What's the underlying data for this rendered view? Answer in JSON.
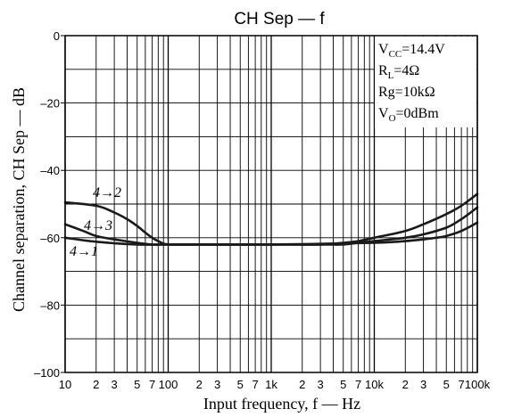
{
  "chart_data": {
    "type": "line",
    "title": "CH Sep — f",
    "xlabel": "Input frequency, f — Hz",
    "ylabel": "Channel separation, CH Sep — dB",
    "xscale": "log",
    "xlim": [
      10,
      100000
    ],
    "ylim": [
      -100,
      0
    ],
    "grid": true,
    "x_ticks": [
      {
        "v": 10,
        "label": "10",
        "major": true
      },
      {
        "v": 20,
        "label": "2"
      },
      {
        "v": 30,
        "label": "3"
      },
      {
        "v": 40,
        "label": ""
      },
      {
        "v": 50,
        "label": "5"
      },
      {
        "v": 60,
        "label": ""
      },
      {
        "v": 70,
        "label": "7"
      },
      {
        "v": 80,
        "label": ""
      },
      {
        "v": 90,
        "label": ""
      },
      {
        "v": 100,
        "label": "100",
        "major": true
      },
      {
        "v": 200,
        "label": "2"
      },
      {
        "v": 300,
        "label": "3"
      },
      {
        "v": 400,
        "label": ""
      },
      {
        "v": 500,
        "label": "5"
      },
      {
        "v": 600,
        "label": ""
      },
      {
        "v": 700,
        "label": "7"
      },
      {
        "v": 800,
        "label": ""
      },
      {
        "v": 900,
        "label": ""
      },
      {
        "v": 1000,
        "label": "1k",
        "major": true
      },
      {
        "v": 2000,
        "label": "2"
      },
      {
        "v": 3000,
        "label": "3"
      },
      {
        "v": 4000,
        "label": ""
      },
      {
        "v": 5000,
        "label": "5"
      },
      {
        "v": 6000,
        "label": ""
      },
      {
        "v": 7000,
        "label": "7"
      },
      {
        "v": 8000,
        "label": ""
      },
      {
        "v": 9000,
        "label": ""
      },
      {
        "v": 10000,
        "label": "10k",
        "major": true
      },
      {
        "v": 20000,
        "label": "2"
      },
      {
        "v": 30000,
        "label": "3"
      },
      {
        "v": 40000,
        "label": ""
      },
      {
        "v": 50000,
        "label": "5"
      },
      {
        "v": 60000,
        "label": ""
      },
      {
        "v": 70000,
        "label": "7"
      },
      {
        "v": 80000,
        "label": ""
      },
      {
        "v": 90000,
        "label": ""
      },
      {
        "v": 100000,
        "label": "100k",
        "major": true
      }
    ],
    "y_ticks": [
      {
        "v": 0,
        "label": "0"
      },
      {
        "v": -20,
        "label": "–20"
      },
      {
        "v": -40,
        "label": "–40"
      },
      {
        "v": -60,
        "label": "–60"
      },
      {
        "v": -80,
        "label": "–80"
      },
      {
        "v": -100,
        "label": "–100"
      }
    ],
    "conditions": [
      "VCC=14.4V",
      "RL=4Ω",
      "Rg=10kΩ",
      "VO=0dBm"
    ],
    "conditions_display": [
      {
        "main": "V",
        "sub": "CC",
        "rest": "=14.4V"
      },
      {
        "main": "R",
        "sub": "L",
        "rest": "=4Ω"
      },
      {
        "main": "Rg=10kΩ",
        "sub": "",
        "rest": ""
      },
      {
        "main": "V",
        "sub": "O",
        "rest": "=0dBm"
      }
    ],
    "series": [
      {
        "name": "4→2",
        "x": [
          10,
          20,
          30,
          40,
          50,
          60,
          70,
          80,
          100,
          200,
          1000,
          3000,
          5000,
          7000,
          10000,
          20000,
          30000,
          50000,
          70000,
          100000
        ],
        "y": [
          -49.5,
          -50.5,
          -52.5,
          -54.5,
          -56.5,
          -58.5,
          -60,
          -61,
          -62,
          -62,
          -62,
          -62,
          -61.5,
          -61,
          -60,
          -58,
          -56,
          -53,
          -50.5,
          -47
        ]
      },
      {
        "name": "4→3",
        "x": [
          10,
          15,
          20,
          30,
          50,
          70,
          100,
          1000,
          3000,
          5000,
          7000,
          10000,
          20000,
          30000,
          50000,
          70000,
          100000
        ],
        "y": [
          -56,
          -58,
          -59.5,
          -60.5,
          -61.5,
          -62,
          -62,
          -62,
          -62,
          -62,
          -61.5,
          -61,
          -60,
          -59,
          -57,
          -54.5,
          -51
        ]
      },
      {
        "name": "4→1",
        "x": [
          10,
          20,
          50,
          100,
          1000,
          10000,
          20000,
          30000,
          40000,
          50000,
          70000,
          100000
        ],
        "y": [
          -60,
          -61.2,
          -62,
          -62,
          -62,
          -61.5,
          -61,
          -60.5,
          -60,
          -59.5,
          -58,
          -55.5
        ]
      }
    ]
  }
}
